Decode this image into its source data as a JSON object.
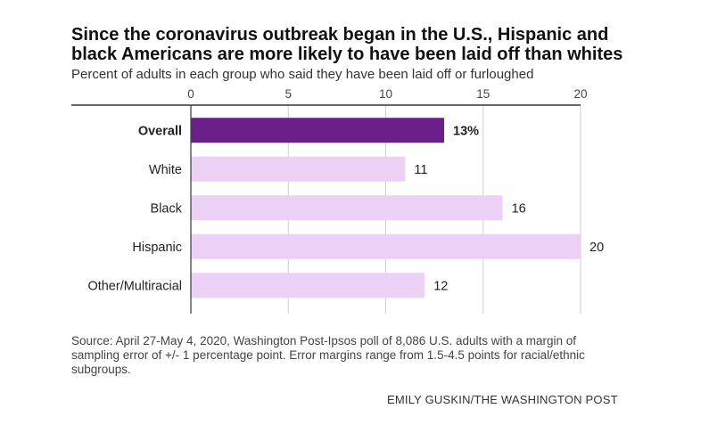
{
  "title": "Since the coronavirus outbreak began in the U.S., Hispanic and black Americans are more likely to have been laid off than whites",
  "subtitle": "Percent of adults in each group who said they have been laid off or furloughed",
  "source": "Source: April 27-May 4, 2020, Washington Post-Ipsos poll of 8,086 U.S. adults with a margin of sampling error of +/- 1 percentage point. Error margins range from 1.5-4.5 points for racial/ethnic subgroups.",
  "credit": "EMILY GUSKIN/THE WASHINGTON POST",
  "colors": {
    "highlight": "#6a1f8a",
    "bar": "#ecd0f6",
    "grid": "#cfcfcf",
    "axis": "#444444"
  },
  "chart_data": {
    "type": "bar",
    "orientation": "horizontal",
    "categories": [
      "Overall",
      "White",
      "Black",
      "Hispanic",
      "Other/Multiracial"
    ],
    "values": [
      13,
      11,
      16,
      20,
      12
    ],
    "value_labels": [
      "13%",
      "11",
      "16",
      "20",
      "12"
    ],
    "highlight_index": 0,
    "xlim": [
      0,
      20
    ],
    "xticks": [
      0,
      5,
      10,
      15,
      20
    ],
    "tick_position": "top",
    "grid": true
  }
}
